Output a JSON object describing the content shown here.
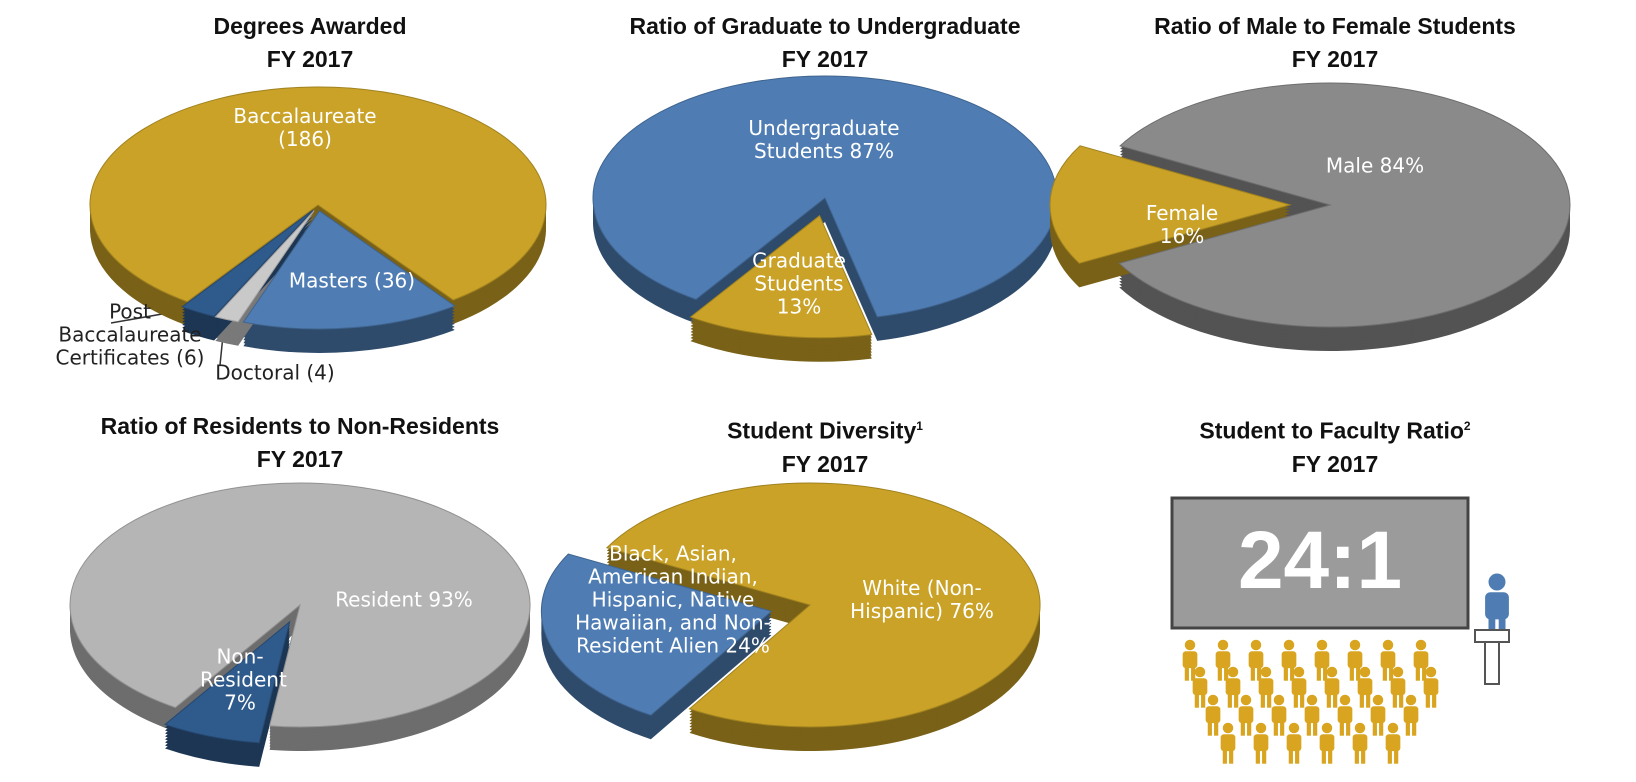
{
  "chart_data": [
    {
      "type": "pie",
      "title": "Degrees Awarded",
      "subtitle": "FY 2017",
      "categories": [
        "Baccalaureate",
        "Masters",
        "Doctoral",
        "Post Baccalaureate Certificates"
      ],
      "values": [
        186,
        36,
        4,
        6
      ],
      "value_labels": [
        "(186)",
        "(36)",
        "(4)",
        "(6)"
      ],
      "colors": [
        "#c9a227",
        "#4f7db3",
        "#c9c9c9",
        "#2f5a8c"
      ]
    },
    {
      "type": "pie",
      "title": "Ratio of Graduate to Undergraduate",
      "subtitle": "FY 2017",
      "categories": [
        "Undergraduate Students",
        "Graduate Students"
      ],
      "values": [
        87,
        13
      ],
      "value_labels": [
        "87%",
        "13%"
      ],
      "colors": [
        "#4f7db3",
        "#c9a227"
      ]
    },
    {
      "type": "pie",
      "title": "Ratio of Male to Female Students",
      "subtitle": "FY 2017",
      "categories": [
        "Male",
        "Female"
      ],
      "values": [
        84,
        16
      ],
      "value_labels": [
        "84%",
        "16%"
      ],
      "colors": [
        "#8a8a8a",
        "#c9a227"
      ]
    },
    {
      "type": "pie",
      "title": "Ratio of Residents to Non-Residents",
      "subtitle": "FY 2017",
      "categories": [
        "Resident",
        "Non-Resident"
      ],
      "values": [
        93,
        7
      ],
      "value_labels": [
        "93%",
        "7%"
      ],
      "colors": [
        "#b5b5b5",
        "#2f5a8c"
      ]
    },
    {
      "type": "pie",
      "title": "Student Diversity",
      "footnote_mark": "1",
      "subtitle": "FY 2017",
      "categories": [
        "White (Non-Hispanic)",
        "Black, Asian, American Indian, Hispanic, Native Hawaiian, and Non-Resident Alien"
      ],
      "values": [
        76,
        24
      ],
      "value_labels": [
        "76%",
        "24%"
      ],
      "colors": [
        "#c9a227",
        "#4f7db3"
      ]
    }
  ],
  "ratio_panel": {
    "title": "Student to Faculty Ratio",
    "footnote_mark": "2",
    "subtitle": "FY 2017",
    "value": "24:1"
  }
}
